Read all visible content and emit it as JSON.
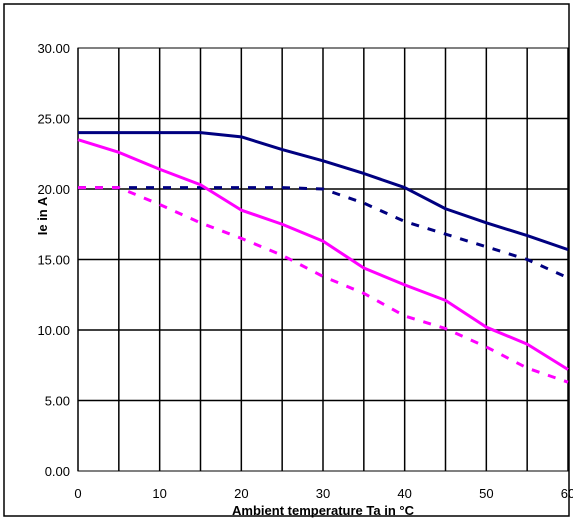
{
  "chart_data": {
    "type": "line",
    "title": "",
    "xlabel": "Ambient temperature Ta in °C",
    "ylabel": "Ie in A",
    "xlim": [
      0,
      60
    ],
    "ylim": [
      0,
      30
    ],
    "x_ticks": [
      "0",
      "10",
      "20",
      "30",
      "40",
      "50",
      "60"
    ],
    "y_ticks": [
      "0.00",
      "5.00",
      "10.00",
      "15.00",
      "20.00",
      "25.00",
      "30.00"
    ],
    "grid": true,
    "legend": "none",
    "series": [
      {
        "color": "#000080",
        "dash": false,
        "x": [
          0,
          5,
          10,
          15,
          20,
          25,
          30,
          35,
          40,
          45,
          50,
          55,
          60
        ],
        "y": [
          24.0,
          24.0,
          24.0,
          24.0,
          23.7,
          22.8,
          22.0,
          21.1,
          20.1,
          18.6,
          17.6,
          16.7,
          15.7
        ]
      },
      {
        "color": "#000080",
        "dash": true,
        "x": [
          0,
          5,
          10,
          15,
          20,
          25,
          30,
          35,
          40,
          45,
          50,
          55,
          60
        ],
        "y": [
          20.1,
          20.1,
          20.1,
          20.1,
          20.1,
          20.1,
          20.0,
          19.0,
          17.7,
          16.8,
          15.9,
          15.0,
          13.7
        ]
      },
      {
        "color": "#ff00ff",
        "dash": false,
        "x": [
          0,
          5,
          10,
          15,
          20,
          25,
          30,
          35,
          40,
          45,
          50,
          55,
          60
        ],
        "y": [
          23.5,
          22.6,
          21.4,
          20.3,
          18.5,
          17.5,
          16.3,
          14.4,
          13.2,
          12.1,
          10.2,
          9.0,
          7.2
        ]
      },
      {
        "color": "#ff00ff",
        "dash": true,
        "x": [
          0,
          5,
          10,
          15,
          20,
          25,
          30,
          35,
          40,
          45,
          50,
          55,
          60
        ],
        "y": [
          20.1,
          20.1,
          18.9,
          17.6,
          16.5,
          15.3,
          13.8,
          12.6,
          11.0,
          10.1,
          8.8,
          7.3,
          6.3
        ]
      }
    ]
  }
}
